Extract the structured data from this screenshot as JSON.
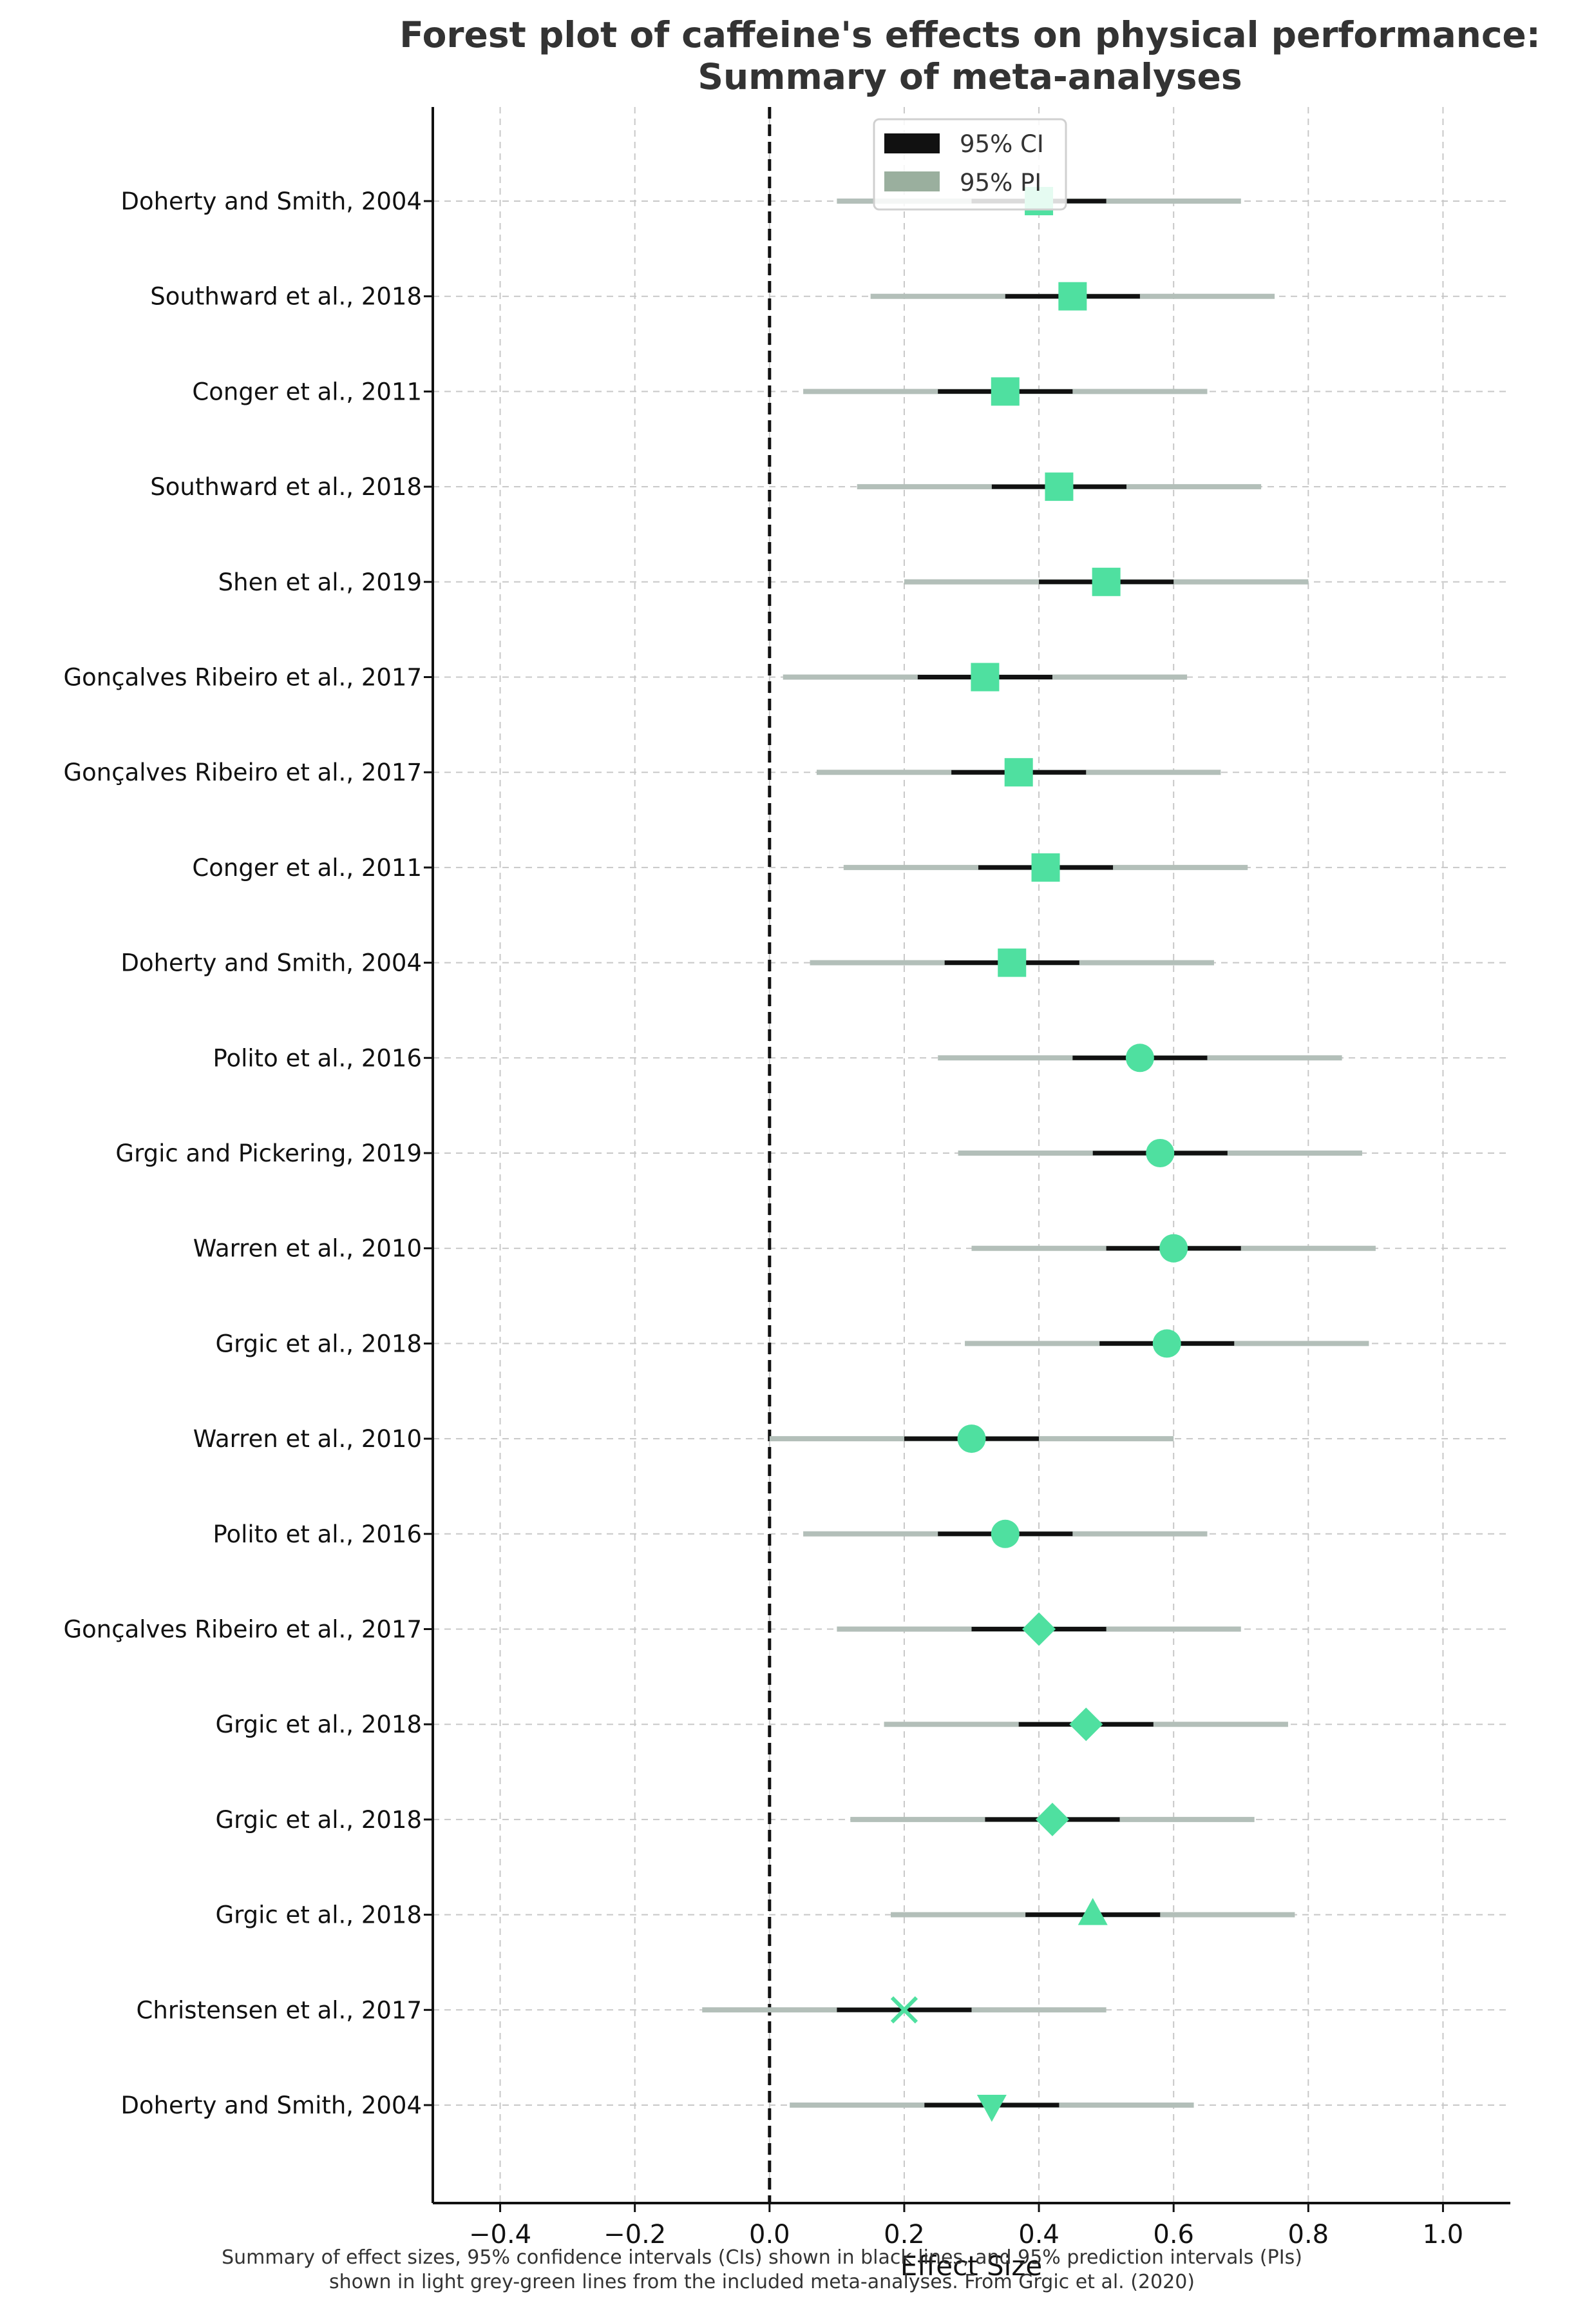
{
  "chart_data": {
    "type": "forest",
    "title_lines": [
      "Forest plot of caffeine's effects on physical performance:",
      "Summary of meta-analyses"
    ],
    "xlabel": "Effect Size",
    "ylabel": "",
    "xlim": [
      -0.5,
      1.1
    ],
    "xticks": [
      -0.4,
      -0.2,
      0.0,
      0.2,
      0.4,
      0.6,
      0.8,
      1.0
    ],
    "xtick_labels": [
      "−0.4",
      "−0.2",
      "0.0",
      "0.2",
      "0.4",
      "0.6",
      "0.8",
      "1.0"
    ],
    "reference_line": 0.0,
    "grid": true,
    "legend": {
      "position": "top-center",
      "entries": [
        {
          "label": "95% CI",
          "color": "#111111"
        },
        {
          "label": "95% PI",
          "color": "#9aaf9e"
        }
      ]
    },
    "colors": {
      "marker": "#4fe0a0",
      "ci": "#111111",
      "pi": "#b3bfb9",
      "reference": "#111111"
    },
    "studies": [
      {
        "label": "Doherty and Smith, 2004",
        "effect": 0.4,
        "ci": [
          0.3,
          0.5
        ],
        "pi": [
          0.1,
          0.7
        ],
        "marker": "square"
      },
      {
        "label": "Southward et al., 2018",
        "effect": 0.45,
        "ci": [
          0.35,
          0.55
        ],
        "pi": [
          0.15,
          0.75
        ],
        "marker": "square"
      },
      {
        "label": "Conger et al., 2011",
        "effect": 0.35,
        "ci": [
          0.25,
          0.45
        ],
        "pi": [
          0.05,
          0.65
        ],
        "marker": "square"
      },
      {
        "label": "Southward et al., 2018",
        "effect": 0.43,
        "ci": [
          0.33,
          0.53
        ],
        "pi": [
          0.13,
          0.73
        ],
        "marker": "square"
      },
      {
        "label": "Shen et al., 2019",
        "effect": 0.5,
        "ci": [
          0.4,
          0.6
        ],
        "pi": [
          0.2,
          0.8
        ],
        "marker": "square"
      },
      {
        "label": "Gonçalves Ribeiro et al., 2017",
        "effect": 0.32,
        "ci": [
          0.22,
          0.42
        ],
        "pi": [
          0.02,
          0.62
        ],
        "marker": "square"
      },
      {
        "label": "Gonçalves Ribeiro et al., 2017",
        "effect": 0.37,
        "ci": [
          0.27,
          0.47
        ],
        "pi": [
          0.07,
          0.67
        ],
        "marker": "square"
      },
      {
        "label": "Conger et al., 2011",
        "effect": 0.41,
        "ci": [
          0.31,
          0.51
        ],
        "pi": [
          0.11,
          0.71
        ],
        "marker": "square"
      },
      {
        "label": "Doherty and Smith, 2004",
        "effect": 0.36,
        "ci": [
          0.26,
          0.46
        ],
        "pi": [
          0.06,
          0.66
        ],
        "marker": "square"
      },
      {
        "label": "Polito et al., 2016",
        "effect": 0.55,
        "ci": [
          0.45,
          0.65
        ],
        "pi": [
          0.25,
          0.85
        ],
        "marker": "circle"
      },
      {
        "label": "Grgic and Pickering, 2019",
        "effect": 0.58,
        "ci": [
          0.48,
          0.68
        ],
        "pi": [
          0.28,
          0.88
        ],
        "marker": "circle"
      },
      {
        "label": "Warren et al., 2010",
        "effect": 0.6,
        "ci": [
          0.5,
          0.7
        ],
        "pi": [
          0.3,
          0.9
        ],
        "marker": "circle"
      },
      {
        "label": "Grgic et al., 2018",
        "effect": 0.59,
        "ci": [
          0.49,
          0.69
        ],
        "pi": [
          0.29,
          0.89
        ],
        "marker": "circle"
      },
      {
        "label": "Warren et al., 2010",
        "effect": 0.3,
        "ci": [
          0.2,
          0.4
        ],
        "pi": [
          0.0,
          0.6
        ],
        "marker": "circle"
      },
      {
        "label": "Polito et al., 2016",
        "effect": 0.35,
        "ci": [
          0.25,
          0.45
        ],
        "pi": [
          0.05,
          0.65
        ],
        "marker": "circle"
      },
      {
        "label": "Gonçalves Ribeiro et al., 2017",
        "effect": 0.4,
        "ci": [
          0.3,
          0.5
        ],
        "pi": [
          0.1,
          0.7
        ],
        "marker": "diamond"
      },
      {
        "label": "Grgic et al., 2018",
        "effect": 0.47,
        "ci": [
          0.37,
          0.57
        ],
        "pi": [
          0.17,
          0.77
        ],
        "marker": "diamond"
      },
      {
        "label": "Grgic et al., 2018",
        "effect": 0.42,
        "ci": [
          0.32,
          0.52
        ],
        "pi": [
          0.12,
          0.72
        ],
        "marker": "diamond"
      },
      {
        "label": "Grgic et al., 2018",
        "effect": 0.48,
        "ci": [
          0.38,
          0.58
        ],
        "pi": [
          0.18,
          0.78
        ],
        "marker": "triangle-up"
      },
      {
        "label": "Christensen et al., 2017",
        "effect": 0.2,
        "ci": [
          0.1,
          0.3
        ],
        "pi": [
          -0.1,
          0.5
        ],
        "marker": "x"
      },
      {
        "label": "Doherty and Smith, 2004",
        "effect": 0.33,
        "ci": [
          0.23,
          0.43
        ],
        "pi": [
          0.03,
          0.63
        ],
        "marker": "triangle-down"
      }
    ],
    "caption_lines": [
      "Summary of effect sizes, 95% confidence intervals (CIs) shown in black lines, and 95% prediction intervals (PIs)",
      "shown in light grey-green lines from the included meta-analyses. From Grgic et al. (2020)"
    ]
  }
}
